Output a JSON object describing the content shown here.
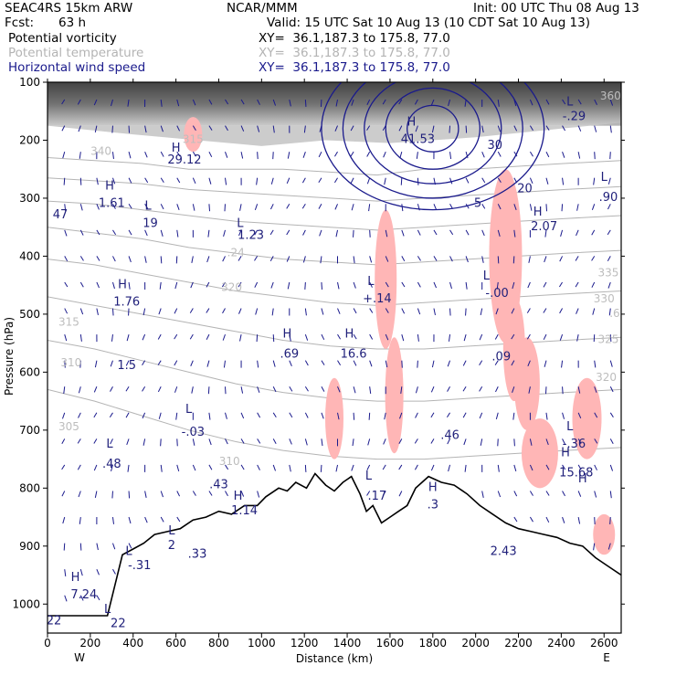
{
  "header": {
    "model": "SEAC4RS 15km ARW",
    "center": "NCAR/MMM",
    "init": "Init: 00 UTC Thu 08 Aug 13",
    "fcst_label": "Fcst:",
    "fcst_value": "63 h",
    "valid": "Valid: 15 UTC Sat 10 Aug 13 (10 CDT Sat 10 Aug 13)",
    "fields": [
      {
        "name": "Potential vorticity",
        "xy": "XY=  36.1,187.3 to 175.8, 77.0",
        "color": "#000000"
      },
      {
        "name": "Potential temperature",
        "xy": "XY=  36.1,187.3 to 175.8, 77.0",
        "color": "#b4b4b4"
      },
      {
        "name": "Horizontal wind speed",
        "xy": "XY=  36.1,187.3 to 175.8, 77.0",
        "color": "#1a1a8c"
      }
    ]
  },
  "chart_data": {
    "type": "cross-section",
    "xlabel": "Distance (km)",
    "ylabel": "Pressure (hPa)",
    "xlim": [
      0,
      2680
    ],
    "ylim": [
      1050,
      100
    ],
    "x_ticks": [
      0,
      200,
      400,
      600,
      800,
      1000,
      1200,
      1400,
      1600,
      1800,
      2000,
      2200,
      2400,
      2600
    ],
    "y_ticks": [
      100,
      200,
      300,
      400,
      500,
      600,
      700,
      800,
      900,
      1000
    ],
    "x_end_labels": {
      "left": "W",
      "right": "E"
    },
    "colors": {
      "axis": "#000000",
      "theta": "#b4b4b4",
      "wind": "#1a1a8c",
      "pv": "#5a1a40",
      "pv_neg": "#ffb6b6",
      "terrain": "#000000"
    },
    "terrain": [
      [
        0,
        1020
      ],
      [
        280,
        1020
      ],
      [
        350,
        915
      ],
      [
        400,
        905
      ],
      [
        450,
        895
      ],
      [
        500,
        880
      ],
      [
        560,
        875
      ],
      [
        620,
        870
      ],
      [
        680,
        855
      ],
      [
        740,
        850
      ],
      [
        800,
        840
      ],
      [
        860,
        845
      ],
      [
        920,
        830
      ],
      [
        980,
        830
      ],
      [
        1020,
        815
      ],
      [
        1080,
        800
      ],
      [
        1120,
        805
      ],
      [
        1160,
        790
      ],
      [
        1210,
        800
      ],
      [
        1250,
        775
      ],
      [
        1300,
        795
      ],
      [
        1340,
        805
      ],
      [
        1380,
        790
      ],
      [
        1420,
        780
      ],
      [
        1460,
        810
      ],
      [
        1490,
        840
      ],
      [
        1520,
        830
      ],
      [
        1560,
        860
      ],
      [
        1600,
        850
      ],
      [
        1640,
        840
      ],
      [
        1680,
        830
      ],
      [
        1720,
        800
      ],
      [
        1780,
        780
      ],
      [
        1840,
        790
      ],
      [
        1900,
        795
      ],
      [
        1960,
        810
      ],
      [
        2020,
        830
      ],
      [
        2080,
        845
      ],
      [
        2140,
        860
      ],
      [
        2200,
        870
      ],
      [
        2260,
        875
      ],
      [
        2320,
        880
      ],
      [
        2380,
        885
      ],
      [
        2440,
        895
      ],
      [
        2500,
        900
      ],
      [
        2560,
        920
      ],
      [
        2620,
        935
      ],
      [
        2680,
        950
      ]
    ],
    "theta_isentropes": [
      {
        "label": "340",
        "p": [
          230,
          235,
          240,
          250,
          250,
          250,
          255,
          260,
          250,
          250,
          245,
          240,
          235
        ]
      },
      {
        "label": "335",
        "p": [
          265,
          270,
          275,
          285,
          290,
          295,
          300,
          305,
          300,
          295,
          290,
          285,
          280
        ]
      },
      {
        "label": "330",
        "p": [
          305,
          310,
          320,
          330,
          340,
          345,
          350,
          355,
          350,
          345,
          340,
          335,
          330
        ]
      },
      {
        "label": "325",
        "p": [
          350,
          360,
          370,
          385,
          395,
          405,
          410,
          415,
          410,
          405,
          400,
          395,
          390
        ]
      },
      {
        "label": "320",
        "p": [
          405,
          415,
          430,
          445,
          460,
          470,
          480,
          485,
          480,
          475,
          470,
          465,
          460
        ]
      },
      {
        "label": "315",
        "p": [
          470,
          485,
          500,
          515,
          530,
          545,
          555,
          560,
          560,
          555,
          550,
          545,
          540
        ]
      },
      {
        "label": "310",
        "p": [
          545,
          560,
          580,
          600,
          620,
          635,
          645,
          650,
          650,
          645,
          640,
          635,
          630
        ]
      },
      {
        "label": "305",
        "p": [
          630,
          650,
          675,
          700,
          720,
          735,
          745,
          750,
          750,
          745,
          740,
          735,
          730
        ]
      }
    ],
    "theta_x": [
      0,
      220,
      440,
      660,
      880,
      1100,
      1320,
      1540,
      1760,
      1980,
      2200,
      2420,
      2680
    ],
    "wind_contours": [
      {
        "cx": 1800,
        "cp": 180,
        "rx": [
          120,
          220,
          320,
          420,
          520
        ],
        "rp": [
          40,
          70,
          95,
          120,
          140
        ]
      }
    ],
    "annotations": [
      {
        "text": "H",
        "x": 1700,
        "p": 175
      },
      {
        "text": "41.53",
        "x": 1730,
        "p": 205
      },
      {
        "text": "H",
        "x": 290,
        "p": 285
      },
      {
        "text": "1.61",
        "x": 300,
        "p": 315
      },
      {
        "text": "H",
        "x": 600,
        "p": 220
      },
      {
        "text": "29.12",
        "x": 640,
        "p": 240
      },
      {
        "text": "L",
        "x": 470,
        "p": 320
      },
      {
        "text": "19",
        "x": 480,
        "p": 350
      },
      {
        "text": "L",
        "x": 900,
        "p": 350
      },
      {
        "text": "1.23",
        "x": 950,
        "p": 370
      },
      {
        "text": "H",
        "x": 350,
        "p": 455
      },
      {
        "text": "1.76",
        "x": 370,
        "p": 485
      },
      {
        "text": "1.5",
        "x": 370,
        "p": 595
      },
      {
        "text": "H",
        "x": 1120,
        "p": 540
      },
      {
        "text": ".69",
        "x": 1130,
        "p": 575
      },
      {
        "text": "H",
        "x": 1410,
        "p": 540
      },
      {
        "text": "16.6",
        "x": 1430,
        "p": 575
      },
      {
        "text": "L",
        "x": 1510,
        "p": 450
      },
      {
        "text": "+.14",
        "x": 1540,
        "p": 480
      },
      {
        "text": "L",
        "x": 2050,
        "p": 440
      },
      {
        "text": "-.00",
        "x": 2100,
        "p": 470
      },
      {
        "text": ".09",
        "x": 2120,
        "p": 580
      },
      {
        "text": "L",
        "x": 660,
        "p": 670
      },
      {
        "text": "-.03",
        "x": 680,
        "p": 710
      },
      {
        "text": "L",
        "x": 290,
        "p": 730
      },
      {
        "text": ".48",
        "x": 300,
        "p": 765
      },
      {
        "text": ".46",
        "x": 1880,
        "p": 715
      },
      {
        "text": "L",
        "x": 2440,
        "p": 700
      },
      {
        "text": "-.36",
        "x": 2460,
        "p": 730
      },
      {
        "text": "H",
        "x": 2420,
        "p": 745
      },
      {
        "text": "15.68",
        "x": 2470,
        "p": 780
      },
      {
        "text": "H",
        "x": 2500,
        "p": 790
      },
      {
        "text": ".43",
        "x": 800,
        "p": 800
      },
      {
        "text": "H",
        "x": 890,
        "p": 820
      },
      {
        "text": "1.14",
        "x": 920,
        "p": 845
      },
      {
        "text": "L",
        "x": 1500,
        "p": 785
      },
      {
        "text": ".17",
        "x": 1540,
        "p": 820
      },
      {
        "text": "H",
        "x": 1800,
        "p": 805
      },
      {
        "text": ".3",
        "x": 1800,
        "p": 835
      },
      {
        "text": "L",
        "x": 580,
        "p": 880
      },
      {
        "text": "2",
        "x": 580,
        "p": 905
      },
      {
        "text": "L",
        "x": 380,
        "p": 915
      },
      {
        "text": "-.31",
        "x": 430,
        "p": 940
      },
      {
        "text": ".33",
        "x": 700,
        "p": 920
      },
      {
        "text": "2.43",
        "x": 2130,
        "p": 915
      },
      {
        "text": "H",
        "x": 130,
        "p": 960
      },
      {
        "text": "7.24",
        "x": 170,
        "p": 990
      },
      {
        "text": "L",
        "x": 280,
        "p": 1015
      },
      {
        "text": "22",
        "x": 330,
        "p": 1040
      },
      {
        "text": "22",
        "x": 30,
        "p": 1035
      },
      {
        "text": "L",
        "x": 2440,
        "p": 140
      },
      {
        "text": "-.29",
        "x": 2460,
        "p": 165
      },
      {
        "text": "30",
        "x": 2090,
        "p": 215
      },
      {
        "text": "20",
        "x": 2230,
        "p": 290
      },
      {
        "text": "H",
        "x": 2290,
        "p": 330
      },
      {
        "text": "2.07",
        "x": 2320,
        "p": 355
      },
      {
        "text": "L",
        "x": 2600,
        "p": 270
      },
      {
        "text": ".90",
        "x": 2620,
        "p": 305
      },
      {
        "text": "47",
        "x": 60,
        "p": 335
      },
      {
        "text": "5",
        "x": 2010,
        "p": 315
      }
    ],
    "theta_labels": [
      {
        "text": "340",
        "x": 250,
        "p": 225
      },
      {
        "text": "315",
        "x": 680,
        "p": 205
      },
      {
        "text": "360",
        "x": 2630,
        "p": 130
      },
      {
        "text": "335",
        "x": 2620,
        "p": 435
      },
      {
        "text": "330",
        "x": 2600,
        "p": 480
      },
      {
        "text": "325",
        "x": 2620,
        "p": 550
      },
      {
        "text": "320",
        "x": 2610,
        "p": 615
      },
      {
        "text": "320",
        "x": 860,
        "p": 460
      },
      {
        "text": "315",
        "x": 100,
        "p": 520
      },
      {
        "text": "310",
        "x": 110,
        "p": 590
      },
      {
        "text": "305",
        "x": 100,
        "p": 700
      },
      {
        "text": "310",
        "x": 850,
        "p": 760
      },
      {
        "text": ".24",
        "x": 880,
        "p": 400
      },
      {
        "text": ".6",
        "x": 2650,
        "p": 505
      }
    ]
  }
}
